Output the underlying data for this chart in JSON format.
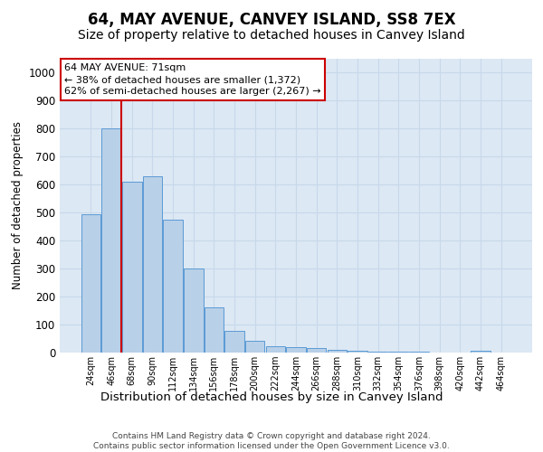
{
  "title": "64, MAY AVENUE, CANVEY ISLAND, SS8 7EX",
  "subtitle": "Size of property relative to detached houses in Canvey Island",
  "xlabel": "Distribution of detached houses by size in Canvey Island",
  "ylabel": "Number of detached properties",
  "categories": [
    "24sqm",
    "46sqm",
    "68sqm",
    "90sqm",
    "112sqm",
    "134sqm",
    "156sqm",
    "178sqm",
    "200sqm",
    "222sqm",
    "244sqm",
    "266sqm",
    "288sqm",
    "310sqm",
    "332sqm",
    "354sqm",
    "376sqm",
    "398sqm",
    "420sqm",
    "442sqm",
    "464sqm"
  ],
  "values": [
    495,
    800,
    610,
    630,
    475,
    300,
    160,
    78,
    42,
    22,
    20,
    15,
    10,
    5,
    2,
    2,
    2,
    1,
    1,
    8,
    1
  ],
  "bar_color": "#b8d0e8",
  "bar_edge_color": "#5b9bd5",
  "vline_color": "#cc0000",
  "vline_x_index": 1.5,
  "annotation_text": "64 MAY AVENUE: 71sqm\n← 38% of detached houses are smaller (1,372)\n62% of semi-detached houses are larger (2,267) →",
  "ylim": [
    0,
    1050
  ],
  "yticks": [
    0,
    100,
    200,
    300,
    400,
    500,
    600,
    700,
    800,
    900,
    1000
  ],
  "grid_color": "#c8d8ea",
  "bg_color": "#dce8f4",
  "footnote": "Contains HM Land Registry data © Crown copyright and database right 2024.\nContains public sector information licensed under the Open Government Licence v3.0.",
  "title_fontsize": 12,
  "subtitle_fontsize": 10,
  "xlabel_fontsize": 9.5,
  "ylabel_fontsize": 8.5,
  "annot_fontsize": 8,
  "tick_fontsize": 7
}
